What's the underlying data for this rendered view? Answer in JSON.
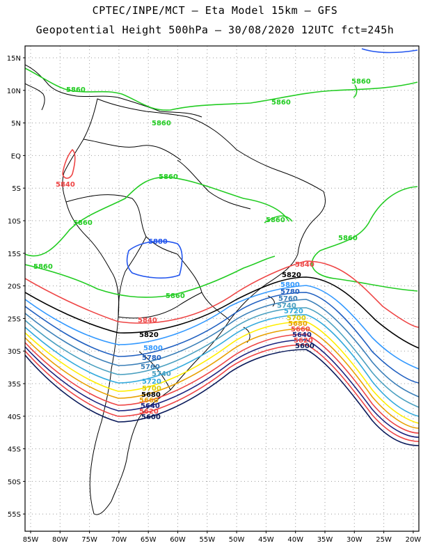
{
  "header": {
    "line1": "CPTEC/INPE/MCT –  Eta Model 15km – GFS",
    "line2": "Geopotential Height 500hPa – 30/08/2020 12UTC fct=245h"
  },
  "axes": {
    "lat_labels": [
      "15N",
      "10N",
      "5N",
      "EQ",
      "5S",
      "10S",
      "15S",
      "20S",
      "25S",
      "30S",
      "35S",
      "40S",
      "45S",
      "50S",
      "55S"
    ],
    "lon_labels": [
      "85W",
      "80W",
      "75W",
      "70W",
      "65W",
      "60W",
      "55W",
      "50W",
      "45W",
      "40W",
      "35W",
      "30W",
      "25W",
      "20W"
    ]
  },
  "contour_levels": [
    {
      "value": "5860",
      "color": "#22cc22"
    },
    {
      "value": "5840",
      "color": "#ee4444"
    },
    {
      "value": "5820",
      "color": "#000000"
    },
    {
      "value": "5800",
      "color": "#3399ff"
    },
    {
      "value": "5780",
      "color": "#1f5fc0"
    },
    {
      "value": "5760",
      "color": "#3a7fb8"
    },
    {
      "value": "5740",
      "color": "#4aa0c0"
    },
    {
      "value": "5720",
      "color": "#33aadd"
    },
    {
      "value": "5700",
      "color": "#ffee00"
    },
    {
      "value": "5680",
      "color": "#e8a000"
    },
    {
      "value": "5660",
      "color": "#ee4444"
    },
    {
      "value": "5640",
      "color": "#1a237e"
    },
    {
      "value": "5620",
      "color": "#ee4444"
    },
    {
      "value": "5600",
      "color": "#0a1a5a"
    }
  ],
  "labels": {
    "green": [
      "5860",
      "5860",
      "5860",
      "5860",
      "5860",
      "5860",
      "5860",
      "5860",
      "5860",
      "5860"
    ],
    "blue_closed": "5880",
    "red_closed": "5840",
    "band_right": [
      "5840",
      "5820",
      "5800",
      "5780",
      "5760",
      "5740",
      "5720",
      "5700",
      "5680",
      "5660",
      "5640",
      "5620",
      "5600"
    ],
    "band_left": [
      "5840",
      "5820",
      "5800",
      "5780",
      "5760",
      "5740",
      "5720",
      "5700",
      "5680",
      "5660",
      "5640",
      "5620",
      "5600"
    ]
  }
}
